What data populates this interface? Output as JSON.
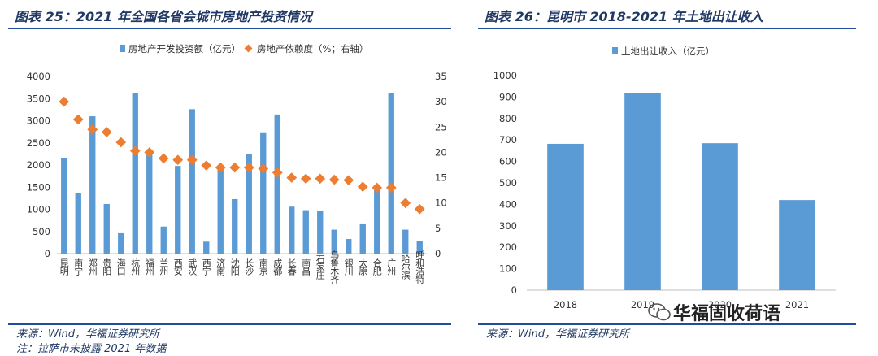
{
  "left": {
    "title": "图表 25：2021 年全国各省会城市房地产投资情况",
    "source": "来源：Wind，华福证券研究所",
    "note": "注：拉萨市未披露 2021 年数据"
  },
  "right": {
    "title": "图表 26：昆明市 2018-2021 年土地出让收入",
    "source": "来源：Wind，华福证券研究所"
  },
  "watermark": "华福固收荷语",
  "colors": {
    "bar": "#5b9bd5",
    "marker": "#ed7d31",
    "title": "#1f3864",
    "rule": "#1f4e9a"
  },
  "chart_data": [
    {
      "type": "bar",
      "categories": [
        "昆明",
        "南宁",
        "郑州",
        "贵阳",
        "海口",
        "杭州",
        "福州",
        "兰州",
        "西安",
        "武汉",
        "西宁",
        "济南",
        "沈阳",
        "长沙",
        "南京",
        "成都",
        "长春",
        "南昌",
        "石家庄",
        "乌鲁木齐",
        "银川",
        "太原",
        "合肥",
        "广州",
        "哈尔滨",
        "呼和浩特"
      ],
      "series": [
        {
          "name": "房地产开发投资额（亿元）",
          "axis": "left",
          "type": "bar",
          "values": [
            2150,
            1370,
            3100,
            1120,
            460,
            3630,
            2250,
            610,
            1980,
            3260,
            270,
            1980,
            1230,
            2240,
            2720,
            3140,
            1060,
            980,
            960,
            540,
            330,
            680,
            1440,
            3630,
            540,
            280
          ]
        },
        {
          "name": "房地产依赖度（%；右轴）",
          "axis": "right",
          "type": "scatter",
          "values": [
            30,
            26.5,
            24.5,
            24,
            22,
            20.3,
            20,
            18.8,
            18.5,
            18.5,
            17.4,
            17,
            17,
            17,
            16.8,
            16,
            15,
            14.8,
            14.8,
            14.6,
            14.5,
            13.2,
            13,
            13,
            10,
            8.8
          ]
        }
      ],
      "ylim": [
        0,
        4000
      ],
      "y_ticks": [
        0,
        500,
        1000,
        1500,
        2000,
        2500,
        3000,
        3500,
        4000
      ],
      "y2lim": [
        0,
        35
      ],
      "y2_ticks": [
        0,
        5,
        10,
        15,
        20,
        25,
        30,
        35
      ],
      "legend_position": "top",
      "grid": false
    },
    {
      "type": "bar",
      "categories": [
        "2018",
        "2019",
        "2020",
        "2021"
      ],
      "series": [
        {
          "name": "土地出让收入（亿元）",
          "values": [
            682,
            918,
            685,
            420
          ]
        }
      ],
      "ylim": [
        0,
        1000
      ],
      "y_ticks": [
        0,
        100,
        200,
        300,
        400,
        500,
        600,
        700,
        800,
        900,
        1000
      ],
      "legend_position": "top",
      "grid": false
    }
  ]
}
